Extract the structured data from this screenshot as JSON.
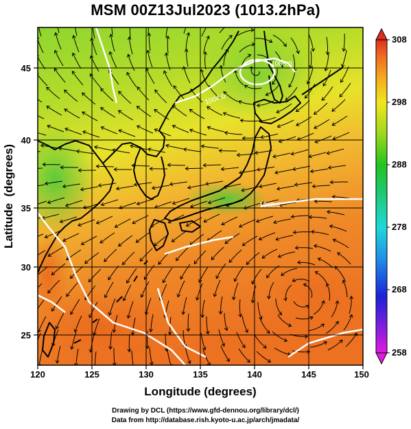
{
  "title": "MSM 00Z13Jul2023 (1013.2hPa)",
  "map": {
    "lon_range": [
      120,
      150
    ],
    "lat_range": [
      22.5,
      47.5
    ],
    "x_ticks": [
      "120",
      "125",
      "130",
      "135",
      "140",
      "145",
      "150"
    ],
    "y_ticks": [
      "25",
      "30",
      "35",
      "40",
      "45"
    ],
    "xlabel": "Longitude (degrees)",
    "ylabel": "Latitude  (degrees)",
    "field": "temperature shading with streamlines and white isobars",
    "isobar_labels": [
      "1004.0",
      "1008.0",
      "1008.0"
    ],
    "colors": {
      "coast": "#000000",
      "grid": "#000000",
      "isobar": "#ffffff",
      "stream": "#000000"
    }
  },
  "colorbar": {
    "labels": [
      "308",
      "298",
      "288",
      "278",
      "268",
      "258"
    ],
    "min": 258,
    "max": 308,
    "stops": [
      "#e01be0",
      "#7a1ee0",
      "#1b22d8",
      "#1e8fe8",
      "#1ed8d8",
      "#1ec86a",
      "#22c41e",
      "#9ed81e",
      "#f0e61e",
      "#f5a81e",
      "#ef6a1e",
      "#e02d1e"
    ]
  },
  "credit": {
    "line1": "Drawing by DCL (https://www.gfd-dennou.org/library/dcl/)",
    "line2": "Data from http://database.rish.kyoto-u.ac.jp/arch/jmadata/"
  }
}
